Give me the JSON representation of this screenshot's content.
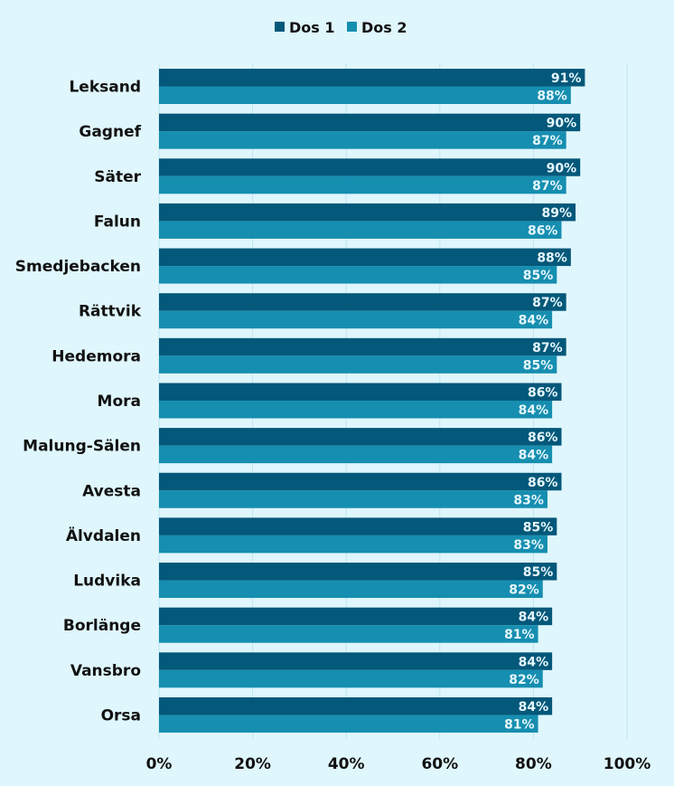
{
  "chart_data": {
    "type": "bar",
    "orientation": "horizontal",
    "title": "",
    "xlabel": "",
    "ylabel": "",
    "xlim": [
      0,
      100
    ],
    "x_ticks": [
      "0%",
      "20%",
      "40%",
      "60%",
      "80%",
      "100%"
    ],
    "grid": true,
    "legend_position": "top-center",
    "categories": [
      "Leksand",
      "Gagnef",
      "Säter",
      "Falun",
      "Smedjebacken",
      "Rättvik",
      "Hedemora",
      "Mora",
      "Malung-Sälen",
      "Avesta",
      "Älvdalen",
      "Ludvika",
      "Borlänge",
      "Vansbro",
      "Orsa"
    ],
    "series": [
      {
        "name": "Dos 1",
        "color": "#04587a",
        "values": [
          91,
          90,
          90,
          89,
          88,
          87,
          87,
          86,
          86,
          86,
          85,
          85,
          84,
          84,
          84
        ]
      },
      {
        "name": "Dos 2",
        "color": "#168eb0",
        "values": [
          88,
          87,
          87,
          86,
          85,
          84,
          85,
          84,
          84,
          83,
          83,
          82,
          81,
          82,
          81
        ]
      }
    ]
  }
}
